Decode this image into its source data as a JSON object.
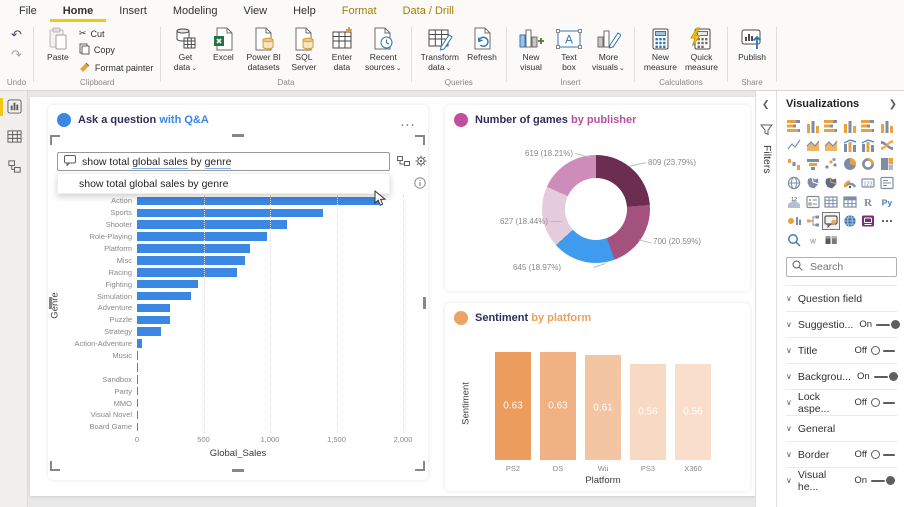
{
  "ribbon": {
    "tabs": [
      {
        "label": "File"
      },
      {
        "label": "Home",
        "active": true
      },
      {
        "label": "Insert"
      },
      {
        "label": "Modeling"
      },
      {
        "label": "View"
      },
      {
        "label": "Help"
      },
      {
        "label": "Format",
        "contextual": true
      },
      {
        "label": "Data / Drill",
        "contextual": true
      }
    ],
    "undo": {
      "group_label": "Undo"
    },
    "clipboard": {
      "group_label": "Clipboard",
      "paste": "Paste",
      "cut": "Cut",
      "copy": "Copy",
      "format_painter": "Format painter"
    },
    "data": {
      "group_label": "Data",
      "items": [
        {
          "id": "get-data",
          "lines": [
            "Get",
            "data"
          ],
          "caret": true
        },
        {
          "id": "excel",
          "lines": [
            "Excel"
          ]
        },
        {
          "id": "powerbi-datasets",
          "lines": [
            "Power BI",
            "datasets"
          ]
        },
        {
          "id": "sql-server",
          "lines": [
            "SQL",
            "Server"
          ]
        },
        {
          "id": "enter-data",
          "lines": [
            "Enter",
            "data"
          ]
        },
        {
          "id": "recent-sources",
          "lines": [
            "Recent",
            "sources"
          ],
          "caret": true
        }
      ]
    },
    "queries": {
      "group_label": "Queries",
      "items": [
        {
          "id": "transform-data",
          "lines": [
            "Transform",
            "data"
          ],
          "caret": true
        },
        {
          "id": "refresh",
          "lines": [
            "Refresh"
          ]
        }
      ]
    },
    "insert": {
      "group_label": "Insert",
      "items": [
        {
          "id": "new-visual",
          "lines": [
            "New",
            "visual"
          ]
        },
        {
          "id": "text-box",
          "lines": [
            "Text",
            "box"
          ]
        },
        {
          "id": "more-visuals",
          "lines": [
            "More",
            "visuals"
          ],
          "caret": true
        }
      ]
    },
    "calculations": {
      "group_label": "Calculations",
      "items": [
        {
          "id": "new-measure",
          "lines": [
            "New",
            "measure"
          ]
        },
        {
          "id": "quick-measure",
          "lines": [
            "Quick",
            "measure"
          ]
        }
      ]
    },
    "share": {
      "group_label": "Share",
      "items": [
        {
          "id": "publish",
          "lines": [
            "Publish"
          ]
        }
      ]
    }
  },
  "qna": {
    "title_primary": "Ask a question",
    "title_secondary": "with Q&A",
    "accent_color": "#3B87E4",
    "input": {
      "full": "show total global sales by genre",
      "parts": [
        {
          "text": "show total "
        },
        {
          "text": "global sales",
          "underlined": true
        },
        {
          "text": " by "
        },
        {
          "text": "genre",
          "underlined": true
        }
      ]
    },
    "suggestion": "show total global sales by genre",
    "chart": {
      "type": "bar",
      "orientation": "horizontal",
      "bar_color": "#3B87E4",
      "categories": [
        "Action",
        "Sports",
        "Shooter",
        "Role-Playing",
        "Platform",
        "Misc",
        "Racing",
        "Fighting",
        "Simulation",
        "Adventure",
        "Puzzle",
        "Strategy",
        "Action-Adventure",
        "Music",
        "",
        "Sandbox",
        "Party",
        "MMO",
        "Visual Novel",
        "Board Game"
      ],
      "values": [
        1820,
        1395,
        1125,
        975,
        850,
        810,
        750,
        460,
        405,
        250,
        245,
        180,
        40,
        8,
        5,
        4,
        3,
        2,
        1.5,
        1
      ],
      "xlim": [
        0,
        2000
      ],
      "x_ticks": [
        "0",
        "500",
        "1,000",
        "1,500",
        "2,000"
      ],
      "xlabel": "Global_Sales",
      "ylabel": "Genre"
    }
  },
  "donut_visual": {
    "title_primary": "Number of games",
    "title_secondary": "by publisher",
    "accent_color": "#C14F9E",
    "chart": {
      "type": "donut",
      "slices": [
        {
          "label": "809 (23.79%)",
          "value": 809,
          "pct": 23.79,
          "color": "#6B2D50"
        },
        {
          "label": "700 (20.59%)",
          "value": 700,
          "pct": 20.59,
          "color": "#A3527D"
        },
        {
          "label": "645 (18.97%)",
          "value": 645,
          "pct": 18.97,
          "color": "#3F9BEE"
        },
        {
          "label": "627 (18.44%)",
          "value": 627,
          "pct": 18.44,
          "color": "#E5CCDD"
        },
        {
          "label": "619 (18.21%)",
          "value": 619,
          "pct": 18.21,
          "color": "#CE8CBB"
        }
      ]
    }
  },
  "sentiment_visual": {
    "title_primary": "Sentiment",
    "title_secondary": "by platform",
    "accent_color": "#EDA266",
    "chart": {
      "type": "column",
      "categories": [
        "PS2",
        "DS",
        "Wii",
        "PS3",
        "X360"
      ],
      "values": [
        0.63,
        0.63,
        0.61,
        0.56,
        0.56
      ],
      "value_labels": [
        "0.63",
        "0.63",
        "0.61",
        "0.56",
        "0.56"
      ],
      "colors": [
        "#EC9D5E",
        "#F0B183",
        "#F4C5A2",
        "#F8D9C4",
        "#F9DFCB"
      ],
      "xlabel": "Platform",
      "ylabel": "Sentiment"
    }
  },
  "panel": {
    "title": "Visualizations",
    "filters_label": "Filters",
    "search_placeholder": "Search",
    "visual_icons": [
      {
        "id": "stacked-bar-chart"
      },
      {
        "id": "stacked-column-chart"
      },
      {
        "id": "clustered-bar-chart"
      },
      {
        "id": "clustered-column-chart"
      },
      {
        "id": "100-stacked-bar-chart"
      },
      {
        "id": "100-stacked-column-chart"
      },
      {
        "id": "line-chart"
      },
      {
        "id": "area-chart"
      },
      {
        "id": "stacked-area-chart"
      },
      {
        "id": "line-stacked-column-chart"
      },
      {
        "id": "line-clustered-column-chart"
      },
      {
        "id": "ribbon-chart"
      },
      {
        "id": "waterfall-chart"
      },
      {
        "id": "funnel-chart"
      },
      {
        "id": "scatter-chart"
      },
      {
        "id": "pie-chart"
      },
      {
        "id": "donut-chart"
      },
      {
        "id": "treemap"
      },
      {
        "id": "map"
      },
      {
        "id": "filled-map"
      },
      {
        "id": "shape-map"
      },
      {
        "id": "gauge"
      },
      {
        "id": "card"
      },
      {
        "id": "multi-row-card"
      },
      {
        "id": "kpi"
      },
      {
        "id": "slicer"
      },
      {
        "id": "table"
      },
      {
        "id": "matrix"
      },
      {
        "id": "r-script-visual"
      },
      {
        "id": "python-visual"
      },
      {
        "id": "key-influencers"
      },
      {
        "id": "decomposition-tree"
      },
      {
        "id": "qna-visual",
        "selected": true
      },
      {
        "id": "smart-narrative"
      },
      {
        "id": "paginated-report"
      },
      {
        "id": "more-visuals-ellipsis"
      },
      {
        "id": "qna-search"
      },
      {
        "id": "word-custom-visual"
      },
      {
        "id": "paired-custom-visual"
      }
    ],
    "sections": [
      {
        "label": "Question field"
      },
      {
        "label": "Suggestio...",
        "toggle": "On"
      },
      {
        "label": "Title",
        "toggle": "Off"
      },
      {
        "label": "Backgrou...",
        "toggle": "On"
      },
      {
        "label": "Lock aspe...",
        "toggle": "Off"
      },
      {
        "label": "General"
      },
      {
        "label": "Border",
        "toggle": "Off"
      },
      {
        "label": "Visual he...",
        "toggle": "On"
      }
    ]
  }
}
